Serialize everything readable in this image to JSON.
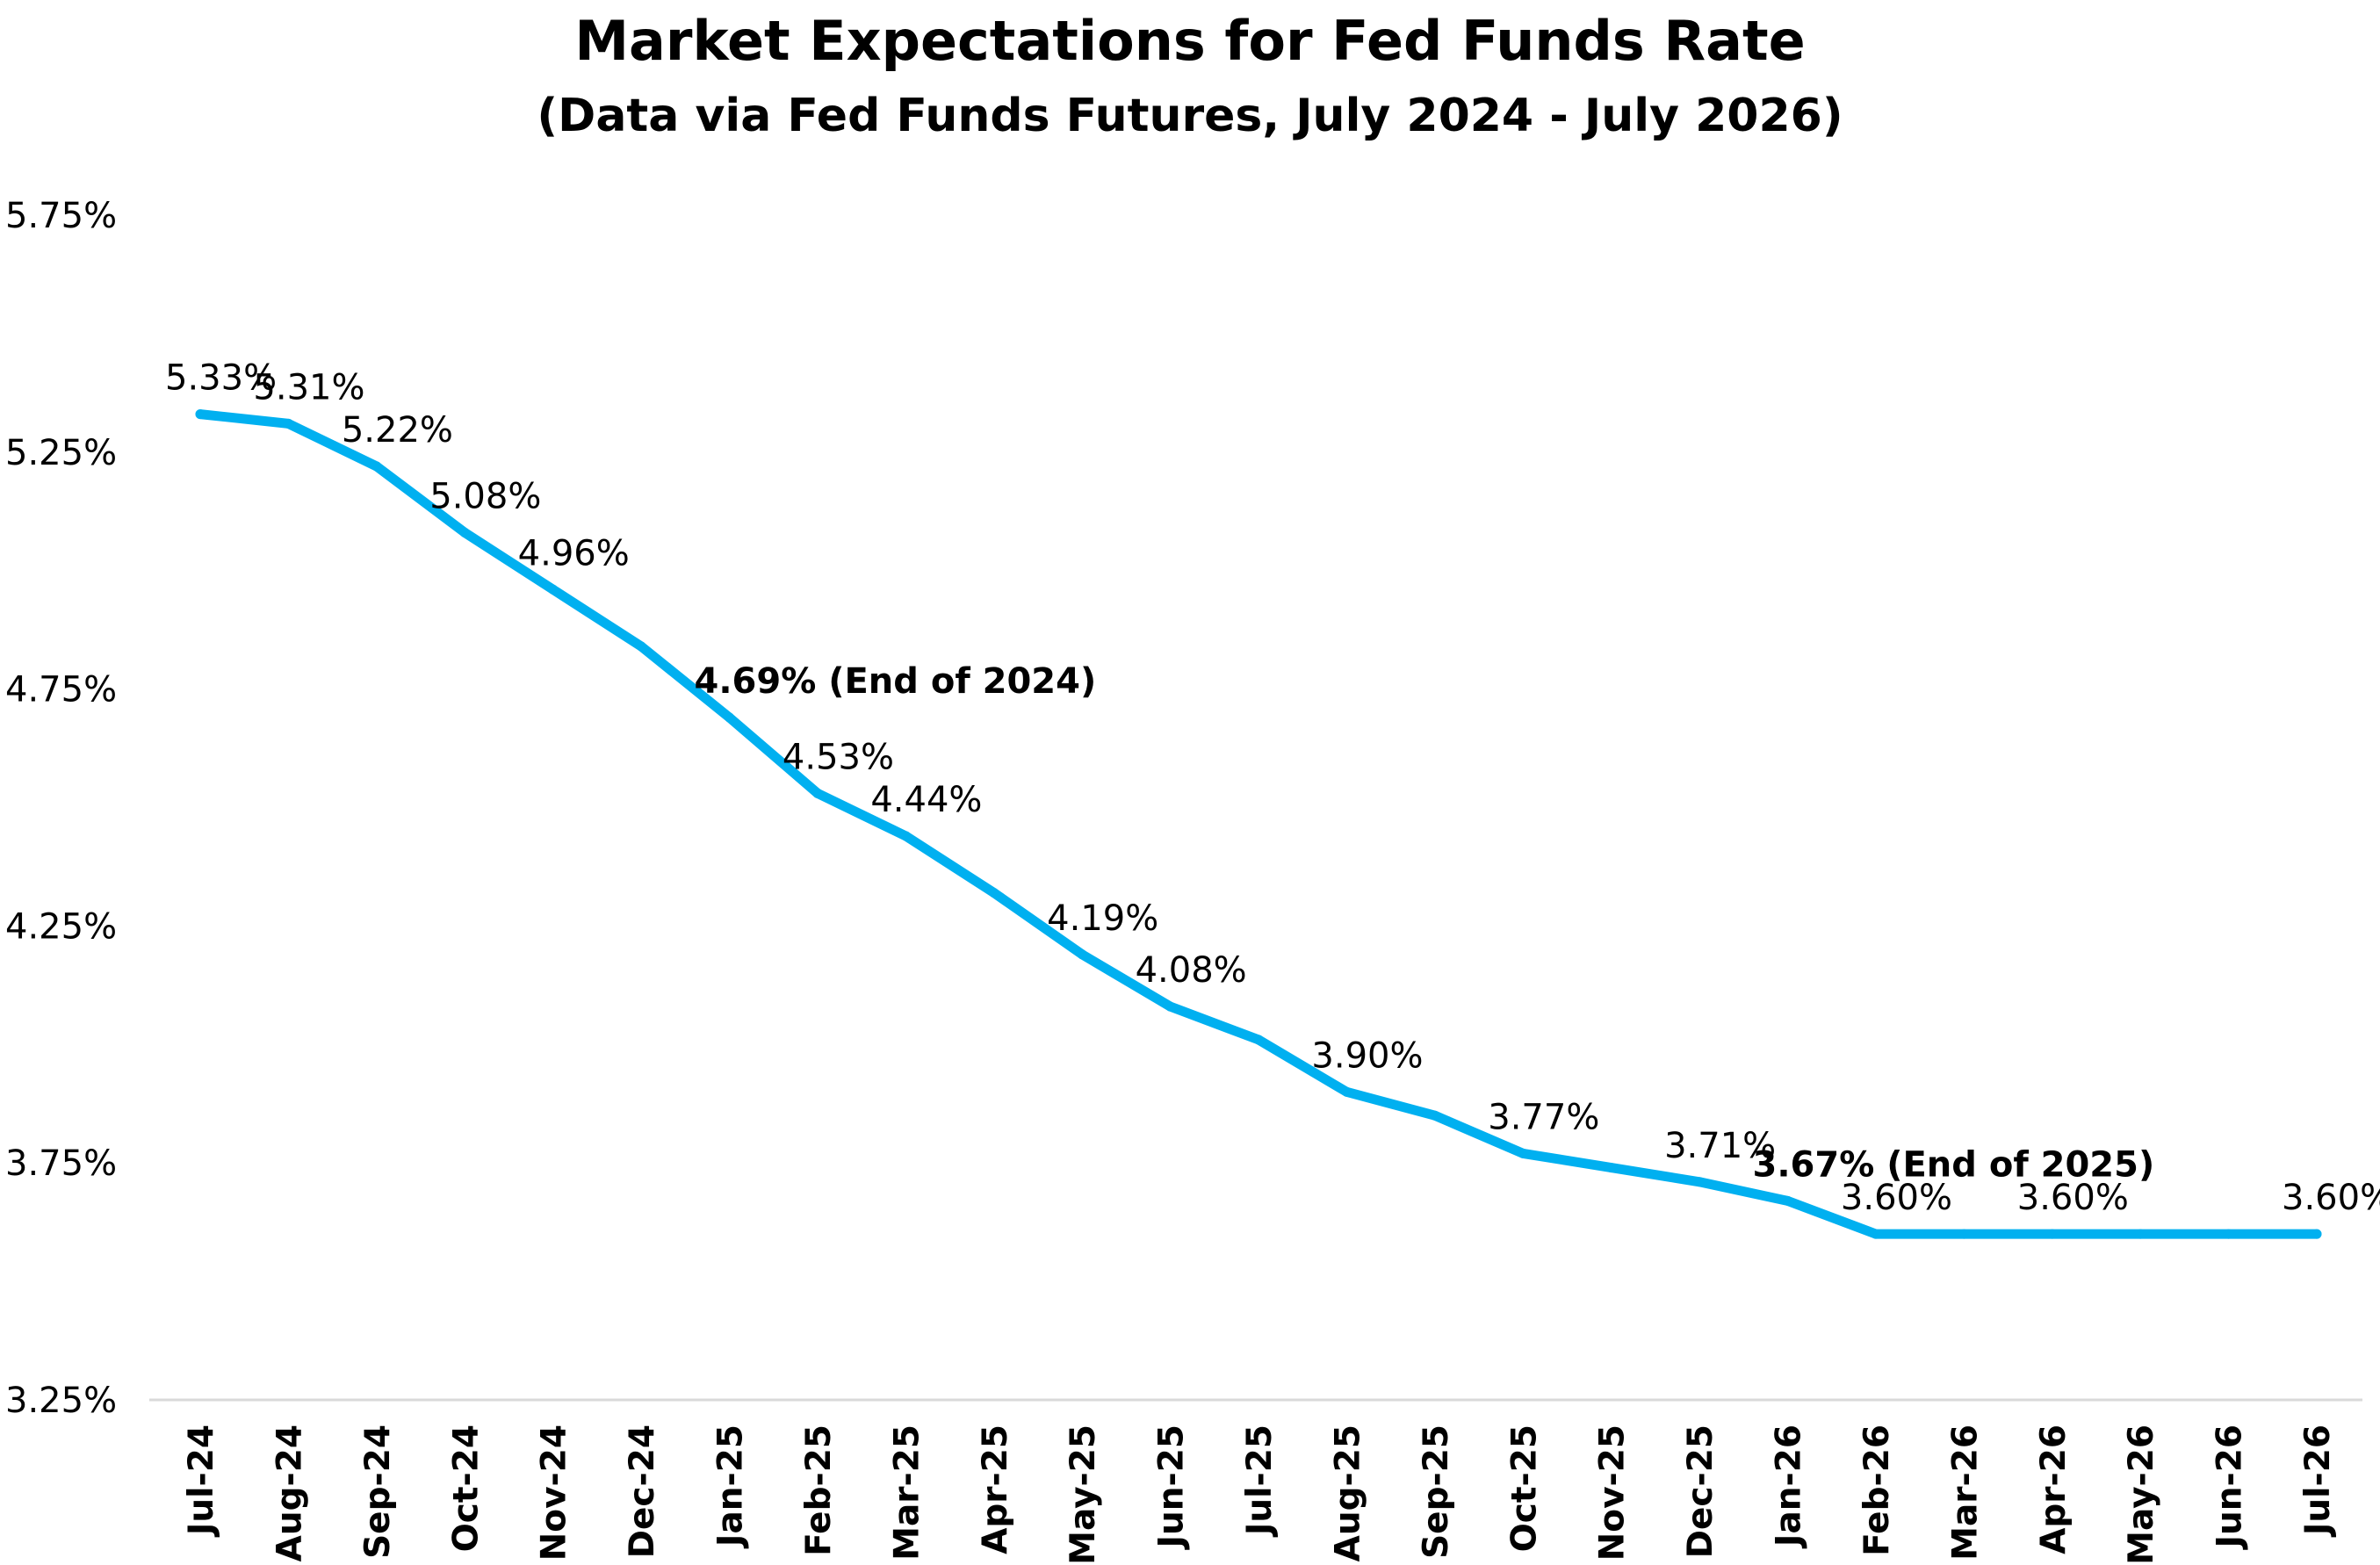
{
  "chart_data": {
    "type": "line",
    "title": "Market Expectations for Fed Funds Rate",
    "subtitle": "(Data via Fed Funds Futures, July 2024 - July 2026)",
    "xlabel": "",
    "ylabel": "",
    "ylim": [
      3.25,
      5.75
    ],
    "yticks": [
      "3.25%",
      "3.75%",
      "4.25%",
      "4.75%",
      "5.25%",
      "5.75%"
    ],
    "ytick_values": [
      3.25,
      3.75,
      4.25,
      4.75,
      5.25,
      5.75
    ],
    "grid": false,
    "legend": "none",
    "line_color": "#00B0F0",
    "categories": [
      "Jul-24",
      "Aug-24",
      "Sep-24",
      "Oct-24",
      "Nov-24",
      "Dec-24",
      "Jan-25",
      "Feb-25",
      "Mar-25",
      "Apr-25",
      "May-25",
      "Jun-25",
      "Jul-25",
      "Aug-25",
      "Sep-25",
      "Oct-25",
      "Nov-25",
      "Dec-25",
      "Jan-26",
      "Feb-26",
      "Mar-26",
      "Apr-26",
      "May-26",
      "Jun-26",
      "Jul-26"
    ],
    "series": [
      {
        "values": [
          5.33,
          5.31,
          5.22,
          5.08,
          4.96,
          4.84,
          4.69,
          4.53,
          4.44,
          4.32,
          4.19,
          4.08,
          4.01,
          3.9,
          3.85,
          3.77,
          3.74,
          3.71,
          3.67,
          3.6,
          3.6,
          3.6,
          3.6,
          3.6,
          3.6
        ]
      }
    ],
    "data_labels": [
      {
        "index": 0,
        "text": "5.33%",
        "bold": false
      },
      {
        "index": 1,
        "text": "5.31%",
        "bold": false
      },
      {
        "index": 2,
        "text": "5.22%",
        "bold": false
      },
      {
        "index": 3,
        "text": "5.08%",
        "bold": false
      },
      {
        "index": 4,
        "text": "4.96%",
        "bold": false
      },
      {
        "index": 6,
        "text": "4.69% (End of 2024)",
        "bold": true
      },
      {
        "index": 7,
        "text": "4.53%",
        "bold": false
      },
      {
        "index": 8,
        "text": "4.44%",
        "bold": false
      },
      {
        "index": 10,
        "text": "4.19%",
        "bold": false
      },
      {
        "index": 11,
        "text": "4.08%",
        "bold": false
      },
      {
        "index": 13,
        "text": "3.90%",
        "bold": false
      },
      {
        "index": 15,
        "text": "3.77%",
        "bold": false
      },
      {
        "index": 17,
        "text": "3.71%",
        "bold": false
      },
      {
        "index": 18,
        "text": "3.67% (End of 2025)",
        "bold": true
      },
      {
        "index": 19,
        "text": "3.60%",
        "bold": false
      },
      {
        "index": 21,
        "text": "3.60%",
        "bold": false
      },
      {
        "index": 24,
        "text": "3.60%",
        "bold": false
      }
    ]
  }
}
